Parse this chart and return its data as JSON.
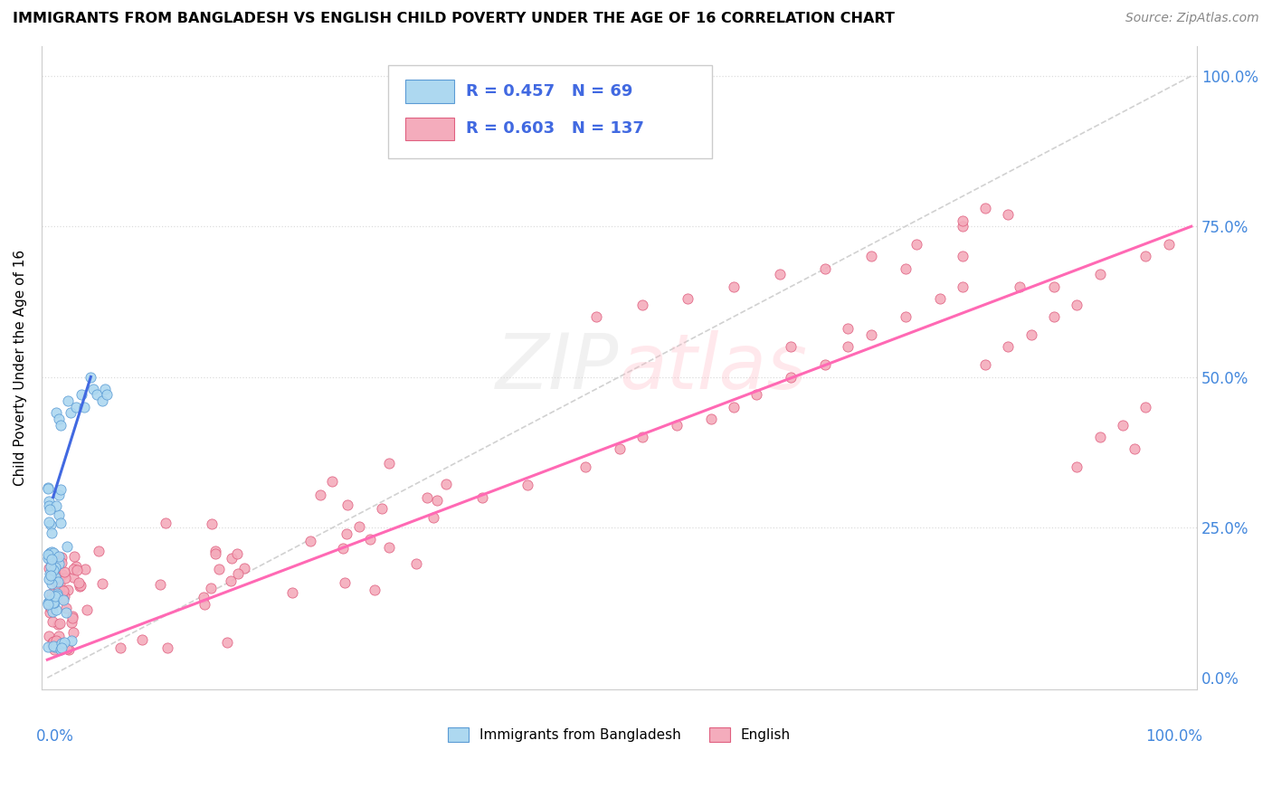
{
  "title": "IMMIGRANTS FROM BANGLADESH VS ENGLISH CHILD POVERTY UNDER THE AGE OF 16 CORRELATION CHART",
  "source": "Source: ZipAtlas.com",
  "ylabel": "Child Poverty Under the Age of 16",
  "legend_blue_label": "Immigrants from Bangladesh",
  "legend_pink_label": "English",
  "R_blue": 0.457,
  "N_blue": 69,
  "R_pink": 0.603,
  "N_pink": 137,
  "blue_fill": "#ADD8F0",
  "blue_edge": "#5B9BD5",
  "pink_fill": "#F4ACBC",
  "pink_edge": "#E06080",
  "blue_line_color": "#4169E1",
  "pink_line_color": "#FF69B4",
  "grey_dash_color": "#CCCCCC",
  "watermark": "ZIPAtlas",
  "background_color": "#ffffff",
  "ytick_color": "#4488DD",
  "xtick_color": "#4488DD",
  "blue_seed": 10,
  "pink_seed": 20
}
